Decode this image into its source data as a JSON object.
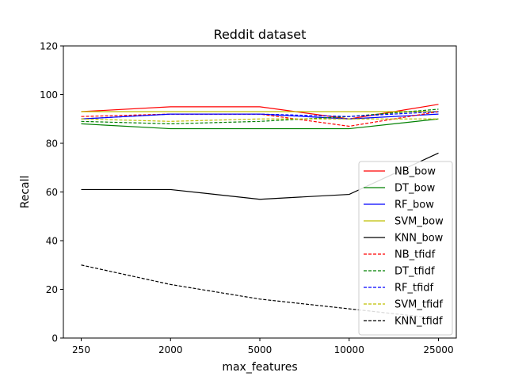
{
  "chart_data": {
    "type": "line",
    "title": "Reddit dataset",
    "xlabel": "max_features",
    "ylabel": "Recall",
    "categories": [
      "250",
      "2000",
      "5000",
      "10000",
      "25000"
    ],
    "ylim": [
      0,
      120
    ],
    "yticks": [
      0,
      20,
      40,
      60,
      80,
      100,
      120
    ],
    "grid": false,
    "legend_position": "lower right",
    "series": [
      {
        "name": "NB_bow",
        "color": "#ff0000",
        "dash": "solid",
        "values": [
          93,
          95,
          95,
          90,
          96
        ]
      },
      {
        "name": "DT_bow",
        "color": "#008000",
        "dash": "solid",
        "values": [
          88,
          86,
          86,
          86,
          90
        ]
      },
      {
        "name": "RF_bow",
        "color": "#0000ff",
        "dash": "solid",
        "values": [
          90,
          92,
          92,
          90,
          92
        ]
      },
      {
        "name": "SVM_bow",
        "color": "#bfbf00",
        "dash": "solid",
        "values": [
          93,
          93,
          93,
          93,
          93
        ]
      },
      {
        "name": "KNN_bow",
        "color": "#000000",
        "dash": "solid",
        "values": [
          61,
          61,
          57,
          59,
          76
        ]
      },
      {
        "name": "NB_tfidf",
        "color": "#ff0000",
        "dash": "dashed",
        "values": [
          91,
          92,
          92,
          87,
          93
        ]
      },
      {
        "name": "DT_tfidf",
        "color": "#008000",
        "dash": "dashed",
        "values": [
          89,
          88,
          89,
          91,
          94
        ]
      },
      {
        "name": "RF_tfidf",
        "color": "#0000ff",
        "dash": "dashed",
        "values": [
          90,
          92,
          92,
          91,
          93
        ]
      },
      {
        "name": "SVM_tfidf",
        "color": "#bfbf00",
        "dash": "dashed",
        "values": [
          90,
          89,
          90,
          90,
          90
        ]
      },
      {
        "name": "KNN_tfidf",
        "color": "#000000",
        "dash": "dashed",
        "values": [
          30,
          22,
          16,
          12,
          8
        ]
      }
    ]
  }
}
